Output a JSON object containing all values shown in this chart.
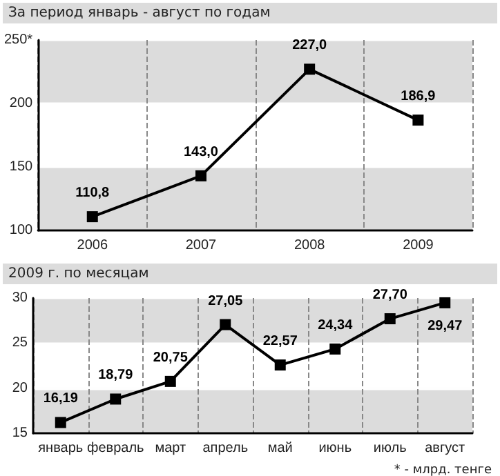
{
  "chart_data": [
    {
      "type": "line",
      "title": "За  период январь - август по годам",
      "categories": [
        "2006",
        "2007",
        "2008",
        "2009"
      ],
      "series": [
        {
          "color": "#000000",
          "values": [
            110.8,
            143.0,
            227.0,
            186.9
          ],
          "value_labels": [
            "110,8",
            "143,0",
            "227,0",
            "186,9"
          ]
        }
      ],
      "ylim": [
        100,
        250
      ],
      "yticks": [
        100,
        150,
        200,
        {
          "value": 250,
          "label": "250*"
        }
      ],
      "bands": [
        {
          "axis": "y",
          "from": 100,
          "to": 150,
          "color": "#dcdcdc"
        },
        {
          "axis": "y",
          "from": 200,
          "to": 250,
          "color": "#dcdcdc"
        }
      ],
      "grid": true,
      "marker": "square",
      "line_style": "solid"
    },
    {
      "type": "line",
      "title": "2009 г. по месяцам",
      "categories": [
        "январь",
        "февраль",
        "март",
        "апрель",
        "май",
        "июнь",
        "июль",
        "август"
      ],
      "series": [
        {
          "color": "#000000",
          "values": [
            16.19,
            18.79,
            20.75,
            27.05,
            22.57,
            24.34,
            27.7,
            29.47
          ],
          "value_labels": [
            "16,19",
            "18,79",
            "20,75",
            "27,05",
            "22,57",
            "24,34",
            "27,70",
            "29,47"
          ]
        }
      ],
      "ylim": [
        15,
        30
      ],
      "yticks": [
        15,
        20,
        25,
        30
      ],
      "bands": [
        {
          "axis": "y",
          "from": 15,
          "to": 20,
          "color": "#dcdcdc"
        },
        {
          "axis": "y",
          "from": 25,
          "to": 30,
          "color": "#dcdcdc"
        }
      ],
      "grid": true,
      "marker": "square",
      "line_style": "solid",
      "annotations": [
        "* - млрд. тенге"
      ]
    }
  ]
}
